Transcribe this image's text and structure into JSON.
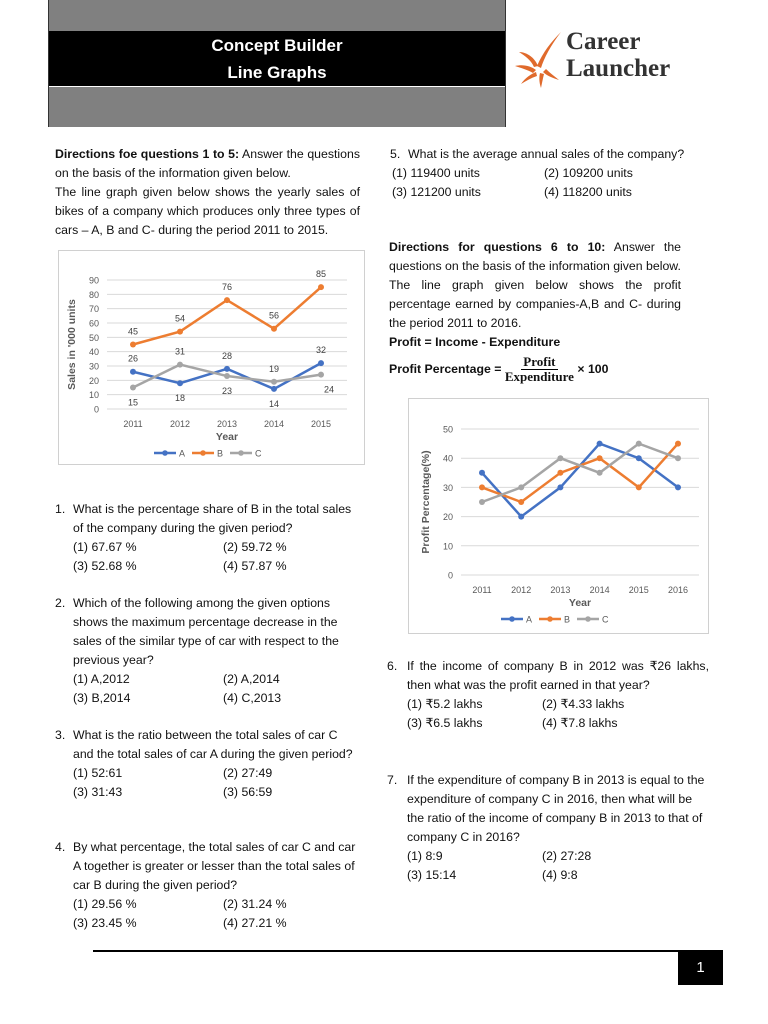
{
  "header": {
    "title_line1": "Concept Builder",
    "title_line2": "Line Graphs",
    "logo_line1": "Career",
    "logo_line2": "Launcher"
  },
  "left": {
    "directions_bold": "Directions foe questions 1 to 5:",
    "directions_text": " Answer the questions on the basis of the information given below.",
    "intro": "The line graph given below shows the yearly sales of bikes of a company which produces only three types of cars – A, B and C- during the period 2011 to 2015.",
    "questions": [
      {
        "num": "1.",
        "text": "What is the percentage share of B in the total sales of the company during the given period?",
        "options": [
          "(1) 67.67 %",
          "(2) 59.72 %",
          "(3) 52.68 %",
          "(4) 57.87 %"
        ]
      },
      {
        "num": "2.",
        "text": "Which of the following among the given options shows the maximum percentage decrease in the sales of the similar type of car with respect to the previous year?",
        "options": [
          "(1) A,2012",
          "(2) A,2014",
          "(3) B,2014",
          "(4) C,2013"
        ]
      },
      {
        "num": "3.",
        "text": "What is the ratio between the total sales of car C and the total sales of car A during the given period?",
        "options": [
          "(1) 52:61",
          "(2) 27:49",
          "(3) 31:43",
          "(3) 56:59"
        ]
      },
      {
        "num": "4.",
        "text": "By what percentage, the total sales of car C and car A together is greater or lesser than the total sales of car B during the given period?",
        "options": [
          "(1) 29.56 %",
          "(2) 31.24 %",
          "(3) 23.45 %",
          "(4) 27.21 %"
        ]
      }
    ]
  },
  "right": {
    "q5": {
      "num": "5.",
      "text": "What is the average annual sales of the company?",
      "options": [
        "(1) 119400 units",
        "(2) 109200 units",
        "(3) 121200 units",
        "(4) 118200 units"
      ]
    },
    "directions_bold": "Directions for questions 6 to 10:",
    "directions_text": " Answer the questions on the basis of the information given below.",
    "intro": "The line graph given below shows the profit percentage earned by companies-A,B and C- during the period 2011 to 2016.",
    "formula1": "Profit = Income - Expenditure",
    "formula2_label": "Profit Percentage = ",
    "formula2_num": "Profit",
    "formula2_den": "Expenditure",
    "formula2_tail": "× 100",
    "questions": [
      {
        "num": "6.",
        "text": "If the income of company B in 2012 was ₹26 lakhs, then what was the profit earned in that year?",
        "options": [
          "(1) ₹5.2 lakhs",
          "(2) ₹4.33 lakhs",
          "(3) ₹6.5 lakhs",
          "(4) ₹7.8 lakhs"
        ]
      },
      {
        "num": "7.",
        "text": "If the expenditure of company B in 2013 is equal to the expenditure of company C in 2016, then what will be the ratio of the income of company B in 2013 to that of company C in 2016?",
        "options": [
          "(1) 8:9",
          "(2) 27:28",
          "(3) 15:14",
          "(4) 9:8"
        ]
      }
    ]
  },
  "footer": {
    "page": "1"
  },
  "chart_data": [
    {
      "type": "line",
      "title": "",
      "xlabel": "Year",
      "ylabel": "Sales in '000 units",
      "categories": [
        "2011",
        "2012",
        "2013",
        "2014",
        "2015"
      ],
      "ylim": [
        0,
        90
      ],
      "yticks": [
        0,
        10,
        20,
        30,
        40,
        50,
        60,
        70,
        80,
        90
      ],
      "grid": true,
      "legend": "bottom",
      "data_labels": true,
      "series": [
        {
          "name": "A",
          "values": [
            26,
            18,
            28,
            14,
            32
          ],
          "color": "#4472c4"
        },
        {
          "name": "B",
          "values": [
            45,
            54,
            76,
            56,
            85
          ],
          "color": "#ed7d31"
        },
        {
          "name": "C",
          "values": [
            15,
            31,
            23,
            19,
            24
          ],
          "color": "#a5a5a5"
        }
      ]
    },
    {
      "type": "line",
      "title": "",
      "xlabel": "Year",
      "ylabel": "Profit Percentage(%)",
      "categories": [
        "2011",
        "2012",
        "2013",
        "2014",
        "2015",
        "2016"
      ],
      "ylim": [
        0,
        50
      ],
      "yticks": [
        0,
        10,
        20,
        30,
        40,
        50
      ],
      "grid": true,
      "legend": "bottom",
      "data_labels": false,
      "series": [
        {
          "name": "A",
          "values": [
            35,
            20,
            30,
            45,
            40,
            30
          ],
          "color": "#4472c4"
        },
        {
          "name": "B",
          "values": [
            30,
            25,
            35,
            40,
            30,
            45
          ],
          "color": "#ed7d31"
        },
        {
          "name": "C",
          "values": [
            25,
            30,
            40,
            35,
            45,
            40
          ],
          "color": "#a5a5a5"
        }
      ]
    }
  ]
}
